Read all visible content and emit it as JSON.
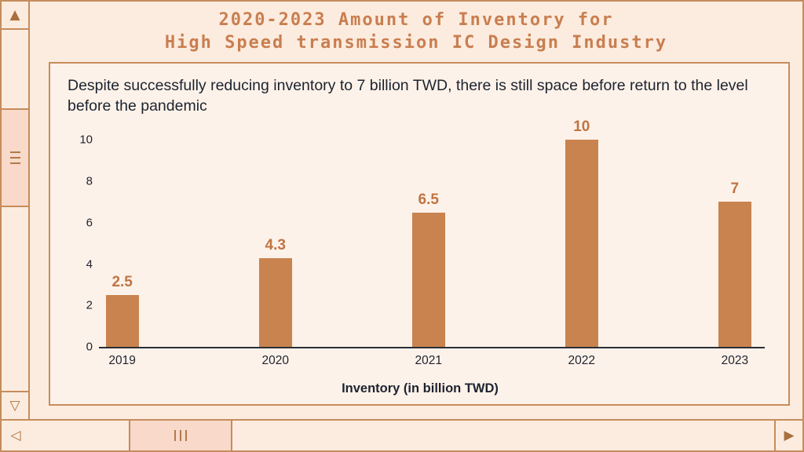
{
  "window": {
    "title_line1": "2020-2023 Amount of Inventory for",
    "title_line2": "High Speed transmission IC Design Industry"
  },
  "icons": {
    "scroll_up": "▲",
    "scroll_down": "▽",
    "scroll_left": "◁",
    "scroll_right": "▶"
  },
  "chart_panel": {
    "subtitle": "Despite successfully reducing inventory to 7 billion TWD, there is still space before return to the level before the pandemic"
  },
  "chart_data": {
    "type": "bar",
    "categories": [
      "2019",
      "2020",
      "2021",
      "2022",
      "2023"
    ],
    "values": [
      2.5,
      4.3,
      6.5,
      10,
      7
    ],
    "value_labels": [
      "2.5",
      "4.3",
      "6.5",
      "10",
      "7"
    ],
    "title": "2020-2023 Amount of Inventory for High Speed transmission IC Design Industry",
    "xlabel": "Inventory (in billion TWD)",
    "ylabel": "",
    "ylim": [
      0,
      10
    ],
    "yticks": [
      0,
      2,
      4,
      6,
      8,
      10
    ],
    "grid": "off",
    "legend": "none",
    "bar_color": "#c9834f"
  },
  "colors": {
    "background": "#fcecdf",
    "panel_background": "#fdf2e9",
    "border": "#c68c5c",
    "title_text": "#c97e50",
    "body_text": "#1d2330",
    "bar": "#c9834f",
    "scroll_thumb": "#f8d9ca"
  }
}
